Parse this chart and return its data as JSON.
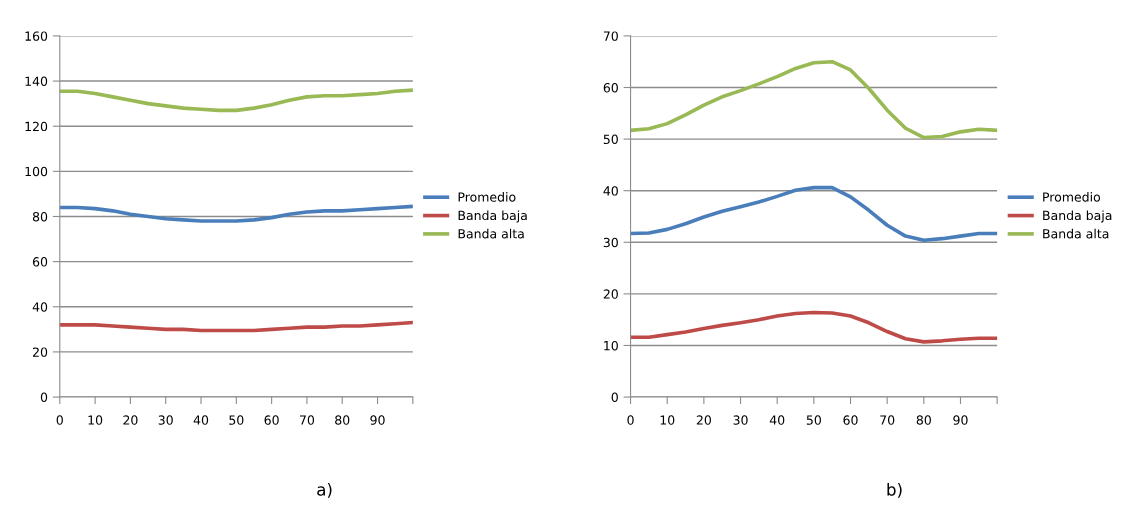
{
  "chart_data": [
    {
      "type": "line",
      "x": [
        0,
        5,
        10,
        15,
        20,
        25,
        30,
        35,
        40,
        45,
        50,
        55,
        60,
        65,
        70,
        75,
        80,
        85,
        90,
        95,
        100
      ],
      "xlim": [
        0,
        100
      ],
      "xticks": [
        0,
        10,
        20,
        30,
        40,
        50,
        60,
        70,
        80,
        90,
        {
          "value": 100,
          "label": null
        }
      ],
      "ylim": [
        0,
        160
      ],
      "yticks": [
        0,
        20,
        40,
        60,
        80,
        100,
        120,
        140,
        160
      ],
      "grid": "y",
      "legend": "right",
      "marker": "none",
      "line_style": "solid",
      "annotations": [
        "a)"
      ],
      "series": [
        {
          "name": "Promedio",
          "color": "#4a7ebb",
          "values": [
            84,
            84,
            83.5,
            82.5,
            81,
            80,
            79,
            78.5,
            78,
            78,
            78,
            78.5,
            79.5,
            81,
            82,
            82.5,
            82.5,
            83,
            83.5,
            84,
            84.5
          ]
        },
        {
          "name": "Banda baja",
          "color": "#be4b48",
          "values": [
            32,
            32,
            32,
            31.5,
            31,
            30.5,
            30,
            30,
            29.5,
            29.5,
            29.5,
            29.5,
            30,
            30.5,
            31,
            31,
            31.5,
            31.5,
            32,
            32.5,
            33
          ]
        },
        {
          "name": "Banda alta",
          "color": "#98b954",
          "values": [
            135.5,
            135.5,
            134.5,
            133,
            131.5,
            130,
            129,
            128,
            127.5,
            127,
            127,
            128,
            129.5,
            131.5,
            133,
            133.5,
            133.5,
            134,
            134.5,
            135.5,
            136
          ]
        }
      ]
    },
    {
      "type": "line",
      "x": [
        0,
        5,
        10,
        15,
        20,
        25,
        30,
        35,
        40,
        45,
        50,
        55,
        60,
        65,
        70,
        75,
        80,
        85,
        90,
        95,
        100
      ],
      "xlim": [
        0,
        100
      ],
      "xticks": [
        0,
        10,
        20,
        30,
        40,
        50,
        60,
        70,
        80,
        90,
        {
          "value": 100,
          "label": null
        }
      ],
      "ylim": [
        0,
        70
      ],
      "yticks": [
        0,
        10,
        20,
        30,
        40,
        50,
        60,
        70
      ],
      "grid": "y",
      "legend": "right",
      "marker": "none",
      "line_style": "solid",
      "annotations": [
        "b)"
      ],
      "series": [
        {
          "name": "Promedio",
          "color": "#4a7ebb",
          "values": [
            31.7,
            31.8,
            32.5,
            33.6,
            34.9,
            36,
            36.9,
            37.8,
            38.9,
            40.1,
            40.6,
            40.6,
            38.8,
            36.2,
            33.3,
            31.2,
            30.4,
            30.7,
            31.2,
            31.7,
            31.7
          ]
        },
        {
          "name": "Banda baja",
          "color": "#be4b48",
          "values": [
            11.6,
            11.6,
            12.1,
            12.6,
            13.3,
            13.9,
            14.4,
            15,
            15.7,
            16.2,
            16.4,
            16.3,
            15.7,
            14.4,
            12.7,
            11.3,
            10.7,
            10.9,
            11.2,
            11.4,
            11.4
          ]
        },
        {
          "name": "Banda alta",
          "color": "#98b954",
          "values": [
            51.7,
            52,
            53,
            54.7,
            56.6,
            58.2,
            59.4,
            60.7,
            62.1,
            63.7,
            64.8,
            65,
            63.4,
            59.8,
            55.6,
            52.1,
            50.3,
            50.5,
            51.4,
            51.9,
            51.7
          ]
        }
      ]
    }
  ]
}
